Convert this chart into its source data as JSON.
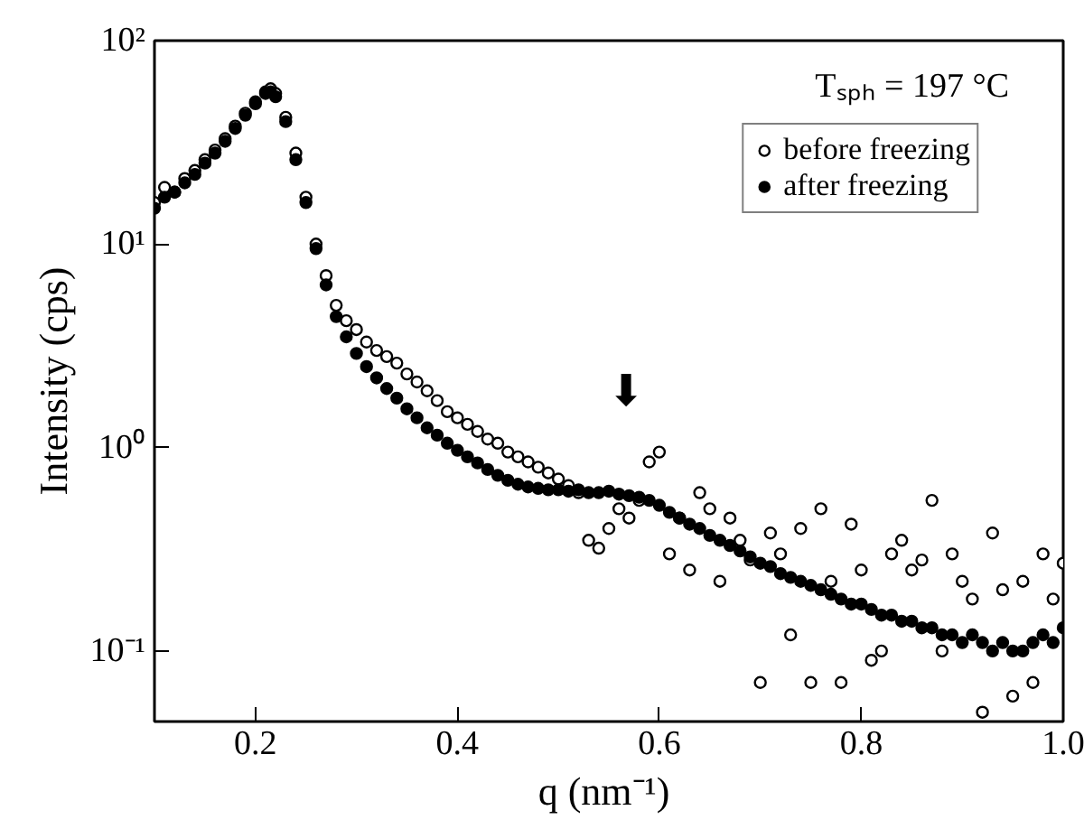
{
  "chart_data": {
    "type": "scatter",
    "xlabel": "q  (nm⁻¹)",
    "ylabel": "Intensity (cps)",
    "xlim": [
      0.1,
      1.0
    ],
    "xticks": [
      0.2,
      0.4,
      0.6,
      0.8,
      {
        "value": 1.0,
        "label": "1.0"
      }
    ],
    "ylim": [
      0.045,
      100
    ],
    "log": true,
    "yticks": [
      {
        "value": 0.1,
        "label": "10⁻¹"
      },
      {
        "value": 1,
        "label": "10⁰"
      },
      {
        "value": 10,
        "label": "10¹"
      },
      {
        "value": 100,
        "label": "10²"
      }
    ],
    "grid": false,
    "legend": "top right",
    "annotations": [
      "Tₛₚₕ = 197 °C",
      "⬇"
    ],
    "series": [
      {
        "name": "before freezing",
        "color": "#000000",
        "marker": "circle_open",
        "x": [
          0.1,
          0.11,
          0.12,
          0.13,
          0.14,
          0.15,
          0.16,
          0.17,
          0.18,
          0.19,
          0.2,
          0.21,
          0.215,
          0.22,
          0.23,
          0.24,
          0.25,
          0.26,
          0.27,
          0.28,
          0.29,
          0.3,
          0.31,
          0.32,
          0.33,
          0.34,
          0.35,
          0.36,
          0.37,
          0.38,
          0.39,
          0.4,
          0.41,
          0.42,
          0.43,
          0.44,
          0.45,
          0.46,
          0.47,
          0.48,
          0.49,
          0.5,
          0.51,
          0.52,
          0.53,
          0.54,
          0.55,
          0.56,
          0.57,
          0.58,
          0.59,
          0.6,
          0.61,
          0.62,
          0.63,
          0.64,
          0.65,
          0.66,
          0.67,
          0.68,
          0.69,
          0.7,
          0.71,
          0.72,
          0.73,
          0.74,
          0.75,
          0.76,
          0.77,
          0.78,
          0.79,
          0.8,
          0.81,
          0.82,
          0.83,
          0.84,
          0.85,
          0.86,
          0.87,
          0.88,
          0.89,
          0.9,
          0.91,
          0.92,
          0.93,
          0.94,
          0.95,
          0.96,
          0.97,
          0.98,
          0.99,
          1.0
        ],
        "values": [
          16,
          19,
          18,
          21,
          23,
          26,
          29,
          33,
          38,
          44,
          50,
          56,
          58,
          55,
          42,
          28,
          17,
          10,
          7,
          5,
          4.2,
          3.8,
          3.3,
          3.0,
          2.8,
          2.6,
          2.3,
          2.1,
          1.9,
          1.7,
          1.5,
          1.4,
          1.3,
          1.2,
          1.1,
          1.05,
          0.95,
          0.9,
          0.85,
          0.8,
          0.75,
          0.7,
          0.65,
          0.6,
          0.35,
          0.32,
          0.4,
          0.5,
          0.45,
          0.55,
          0.85,
          0.95,
          0.3,
          0.45,
          0.25,
          0.6,
          0.5,
          0.22,
          0.45,
          0.35,
          0.28,
          0.07,
          0.38,
          0.3,
          0.12,
          0.4,
          0.07,
          0.5,
          0.22,
          0.07,
          0.42,
          0.25,
          0.09,
          0.1,
          0.3,
          0.35,
          0.25,
          0.28,
          0.55,
          0.1,
          0.3,
          0.22,
          0.18,
          0.05,
          0.38,
          0.2,
          0.06,
          0.22,
          0.07,
          0.3,
          0.18,
          0.27
        ]
      },
      {
        "name": "after freezing",
        "color": "#000000",
        "marker": "circle",
        "x": [
          0.1,
          0.11,
          0.12,
          0.13,
          0.14,
          0.15,
          0.16,
          0.17,
          0.18,
          0.19,
          0.2,
          0.21,
          0.215,
          0.22,
          0.23,
          0.24,
          0.25,
          0.26,
          0.27,
          0.28,
          0.29,
          0.3,
          0.31,
          0.32,
          0.33,
          0.34,
          0.35,
          0.36,
          0.37,
          0.38,
          0.39,
          0.4,
          0.41,
          0.42,
          0.43,
          0.44,
          0.45,
          0.46,
          0.47,
          0.48,
          0.49,
          0.5,
          0.51,
          0.52,
          0.53,
          0.54,
          0.55,
          0.56,
          0.57,
          0.58,
          0.59,
          0.6,
          0.61,
          0.62,
          0.63,
          0.64,
          0.65,
          0.66,
          0.67,
          0.68,
          0.69,
          0.7,
          0.71,
          0.72,
          0.73,
          0.74,
          0.75,
          0.76,
          0.77,
          0.78,
          0.79,
          0.8,
          0.81,
          0.82,
          0.83,
          0.84,
          0.85,
          0.86,
          0.87,
          0.88,
          0.89,
          0.9,
          0.91,
          0.92,
          0.93,
          0.94,
          0.95,
          0.96,
          0.97,
          0.98,
          0.99,
          1.0
        ],
        "values": [
          15,
          17,
          18,
          20,
          22,
          25,
          28,
          32,
          37,
          43,
          49,
          55,
          56,
          53,
          40,
          26,
          16,
          9.5,
          6.3,
          4.4,
          3.5,
          2.9,
          2.5,
          2.2,
          1.95,
          1.75,
          1.55,
          1.4,
          1.25,
          1.15,
          1.05,
          0.97,
          0.9,
          0.84,
          0.78,
          0.73,
          0.69,
          0.66,
          0.64,
          0.63,
          0.62,
          0.62,
          0.61,
          0.62,
          0.6,
          0.6,
          0.61,
          0.59,
          0.58,
          0.57,
          0.55,
          0.52,
          0.48,
          0.45,
          0.42,
          0.4,
          0.37,
          0.35,
          0.33,
          0.31,
          0.29,
          0.27,
          0.26,
          0.24,
          0.23,
          0.22,
          0.21,
          0.2,
          0.19,
          0.18,
          0.17,
          0.17,
          0.16,
          0.15,
          0.15,
          0.14,
          0.14,
          0.13,
          0.13,
          0.12,
          0.12,
          0.11,
          0.12,
          0.11,
          0.1,
          0.11,
          0.1,
          0.1,
          0.11,
          0.12,
          0.11,
          0.13
        ]
      }
    ]
  }
}
